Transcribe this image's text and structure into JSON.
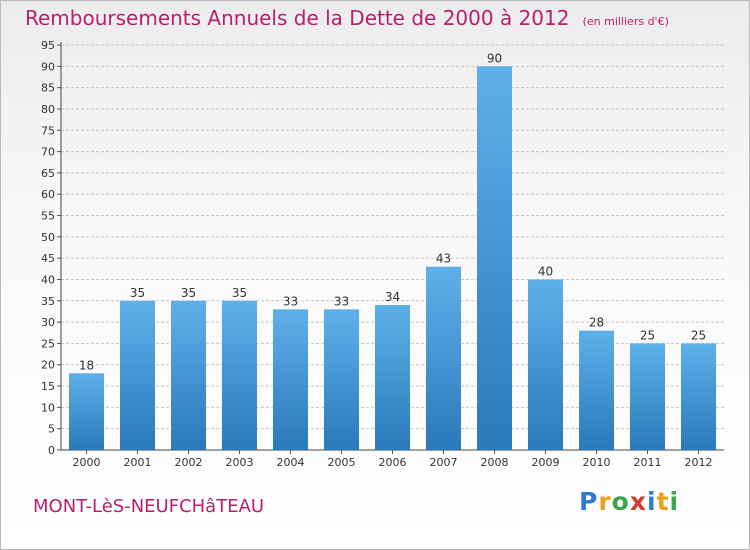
{
  "header": {
    "title": "Remboursements Annuels de la Dette de 2000 à 2012",
    "unit": "(en milliers d'€)"
  },
  "footer": {
    "commune": "MONT-LèS-NEUFCHâTEAU",
    "brand": "Proxiti"
  },
  "colors": {
    "title": "#b7206e",
    "bar_top": "#5eb0ea",
    "bar_bottom": "#2b79b9",
    "grid": "#c8c8c8"
  },
  "chart_data": {
    "type": "bar",
    "title": "Remboursements Annuels de la Dette de 2000 à 2012",
    "xlabel": "",
    "ylabel": "(en milliers d'€)",
    "categories": [
      "2000",
      "2001",
      "2002",
      "2003",
      "2004",
      "2005",
      "2006",
      "2007",
      "2008",
      "2009",
      "2010",
      "2011",
      "2012"
    ],
    "values": [
      18,
      35,
      35,
      35,
      33,
      33,
      34,
      43,
      90,
      40,
      28,
      25,
      25
    ],
    "ylim": [
      0,
      95
    ],
    "ytick_step": 5,
    "grid": true,
    "legend": "none"
  }
}
